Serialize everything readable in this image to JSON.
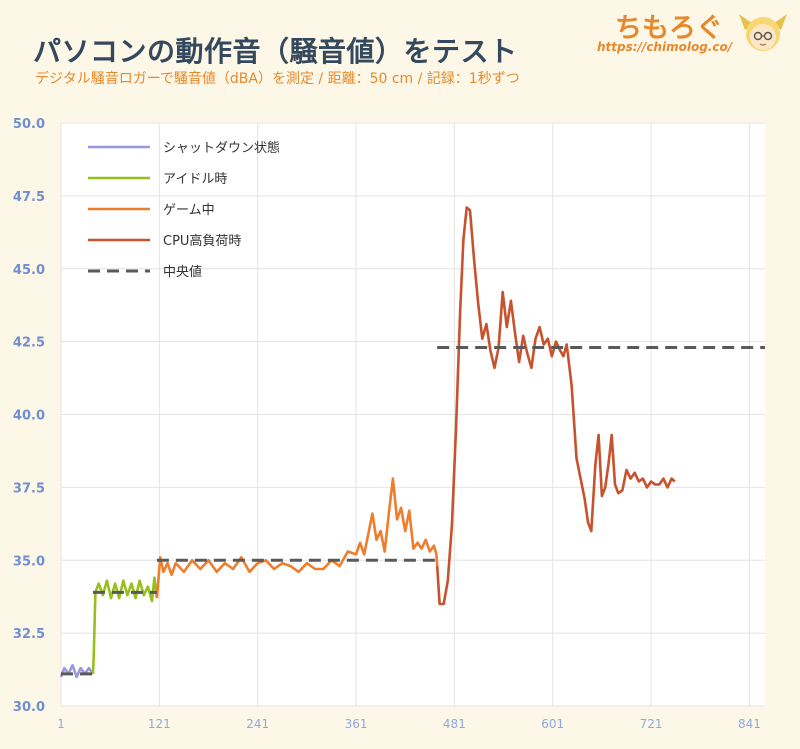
{
  "header": {
    "title": "パソコンの動作音（騒音値）をテスト",
    "subtitle": "デジタル騒音ロガーで騒音値（dBA）を測定 / 距離：50 cm / 記録：1秒ずつ",
    "logo_text": "ちもろぐ",
    "logo_url": "https://chimolog.co/"
  },
  "colors": {
    "shutdown": "#9b96e0",
    "idle": "#97bf1e",
    "game": "#ee7e2e",
    "cpu_load": "#c8522d",
    "median": "#595959",
    "y_ticks": "#6f8fd0",
    "x_ticks": "#8ea9df",
    "grid": "#e4e4e4"
  },
  "chart_data": {
    "type": "line",
    "xlim": [
      1,
      860
    ],
    "ylim": [
      30,
      50
    ],
    "x_ticks": [
      "1",
      "121",
      "241",
      "361",
      "481",
      "601",
      "721",
      "841"
    ],
    "x_tick_values": [
      1,
      121,
      241,
      361,
      481,
      601,
      721,
      841
    ],
    "y_ticks": [
      "30.0",
      "32.5",
      "35.0",
      "37.5",
      "40.0",
      "42.5",
      "45.0",
      "47.5",
      "50.0"
    ],
    "y_tick_values": [
      30,
      32.5,
      35,
      37.5,
      40,
      42.5,
      45,
      47.5,
      50
    ],
    "legend_position": "top-left",
    "grid": true,
    "series": [
      {
        "name": "シャットダウン状態",
        "color_key": "shutdown",
        "style": "solid",
        "points": [
          [
            1,
            31.0
          ],
          [
            5,
            31.3
          ],
          [
            10,
            31.1
          ],
          [
            15,
            31.4
          ],
          [
            20,
            31.0
          ],
          [
            25,
            31.3
          ],
          [
            30,
            31.1
          ],
          [
            35,
            31.3
          ],
          [
            40,
            31.1
          ]
        ]
      },
      {
        "name": "アイドル時",
        "color_key": "idle",
        "style": "solid",
        "points": [
          [
            40,
            31.1
          ],
          [
            41,
            31.8
          ],
          [
            43,
            33.9
          ],
          [
            47,
            34.2
          ],
          [
            52,
            33.8
          ],
          [
            57,
            34.3
          ],
          [
            62,
            33.7
          ],
          [
            67,
            34.2
          ],
          [
            72,
            33.7
          ],
          [
            77,
            34.3
          ],
          [
            82,
            33.8
          ],
          [
            87,
            34.2
          ],
          [
            92,
            33.7
          ],
          [
            97,
            34.3
          ],
          [
            102,
            33.8
          ],
          [
            107,
            34.1
          ],
          [
            112,
            33.6
          ],
          [
            115,
            34.4
          ],
          [
            118,
            33.7
          ]
        ]
      },
      {
        "name": "ゲーム中",
        "color_key": "game",
        "style": "solid",
        "points": [
          [
            118,
            33.7
          ],
          [
            122,
            35.1
          ],
          [
            126,
            34.6
          ],
          [
            131,
            34.9
          ],
          [
            136,
            34.5
          ],
          [
            141,
            34.9
          ],
          [
            151,
            34.6
          ],
          [
            161,
            35.0
          ],
          [
            171,
            34.7
          ],
          [
            181,
            35.0
          ],
          [
            191,
            34.6
          ],
          [
            201,
            34.9
          ],
          [
            211,
            34.7
          ],
          [
            221,
            35.1
          ],
          [
            231,
            34.6
          ],
          [
            241,
            34.9
          ],
          [
            251,
            35.0
          ],
          [
            261,
            34.7
          ],
          [
            271,
            34.9
          ],
          [
            281,
            34.8
          ],
          [
            291,
            34.6
          ],
          [
            301,
            34.9
          ],
          [
            311,
            34.7
          ],
          [
            321,
            34.7
          ],
          [
            331,
            35.0
          ],
          [
            341,
            34.8
          ],
          [
            351,
            35.3
          ],
          [
            361,
            35.2
          ],
          [
            366,
            35.6
          ],
          [
            371,
            35.2
          ],
          [
            376,
            35.9
          ],
          [
            381,
            36.6
          ],
          [
            386,
            35.7
          ],
          [
            391,
            36.0
          ],
          [
            396,
            35.3
          ],
          [
            401,
            36.6
          ],
          [
            406,
            37.8
          ],
          [
            411,
            36.4
          ],
          [
            416,
            36.8
          ],
          [
            421,
            36.0
          ],
          [
            426,
            36.7
          ],
          [
            431,
            35.4
          ],
          [
            436,
            35.6
          ],
          [
            441,
            35.4
          ],
          [
            446,
            35.7
          ],
          [
            451,
            35.3
          ],
          [
            456,
            35.5
          ],
          [
            459,
            35.2
          ],
          [
            460,
            34.8
          ]
        ]
      },
      {
        "name": "CPU高負荷時",
        "color_key": "cpu_load",
        "style": "solid",
        "points": [
          [
            460,
            34.8
          ],
          [
            463,
            33.5
          ],
          [
            468,
            33.5
          ],
          [
            473,
            34.3
          ],
          [
            478,
            36.2
          ],
          [
            483,
            39.5
          ],
          [
            488,
            43.5
          ],
          [
            492,
            46.0
          ],
          [
            496,
            47.1
          ],
          [
            500,
            47.0
          ],
          [
            505,
            45.3
          ],
          [
            510,
            43.8
          ],
          [
            515,
            42.6
          ],
          [
            520,
            43.1
          ],
          [
            525,
            42.2
          ],
          [
            530,
            41.6
          ],
          [
            535,
            42.3
          ],
          [
            540,
            44.2
          ],
          [
            545,
            43.0
          ],
          [
            550,
            43.9
          ],
          [
            555,
            42.8
          ],
          [
            560,
            41.8
          ],
          [
            565,
            42.7
          ],
          [
            570,
            42.1
          ],
          [
            575,
            41.6
          ],
          [
            580,
            42.6
          ],
          [
            585,
            43.0
          ],
          [
            590,
            42.4
          ],
          [
            595,
            42.6
          ],
          [
            600,
            42.0
          ],
          [
            605,
            42.5
          ],
          [
            610,
            42.2
          ],
          [
            614,
            42.0
          ],
          [
            618,
            42.4
          ],
          [
            624,
            41.0
          ],
          [
            630,
            38.5
          ],
          [
            635,
            37.8
          ],
          [
            640,
            37.1
          ],
          [
            644,
            36.3
          ],
          [
            648,
            36.0
          ],
          [
            653,
            38.3
          ],
          [
            657,
            39.3
          ],
          [
            661,
            37.2
          ],
          [
            665,
            37.5
          ],
          [
            669,
            38.3
          ],
          [
            673,
            39.3
          ],
          [
            677,
            37.6
          ],
          [
            681,
            37.3
          ],
          [
            686,
            37.4
          ],
          [
            691,
            38.1
          ],
          [
            696,
            37.8
          ],
          [
            701,
            38.0
          ],
          [
            706,
            37.7
          ],
          [
            711,
            37.8
          ],
          [
            716,
            37.5
          ],
          [
            721,
            37.7
          ],
          [
            726,
            37.6
          ],
          [
            731,
            37.6
          ],
          [
            736,
            37.8
          ],
          [
            741,
            37.5
          ],
          [
            746,
            37.8
          ],
          [
            750,
            37.7
          ]
        ]
      },
      {
        "name": "中央値",
        "color_key": "median",
        "style": "dashed",
        "segments": [
          [
            1,
            40,
            31.1
          ],
          [
            40,
            118,
            33.9
          ],
          [
            118,
            460,
            35.0
          ],
          [
            460,
            860,
            42.3
          ]
        ]
      }
    ]
  }
}
